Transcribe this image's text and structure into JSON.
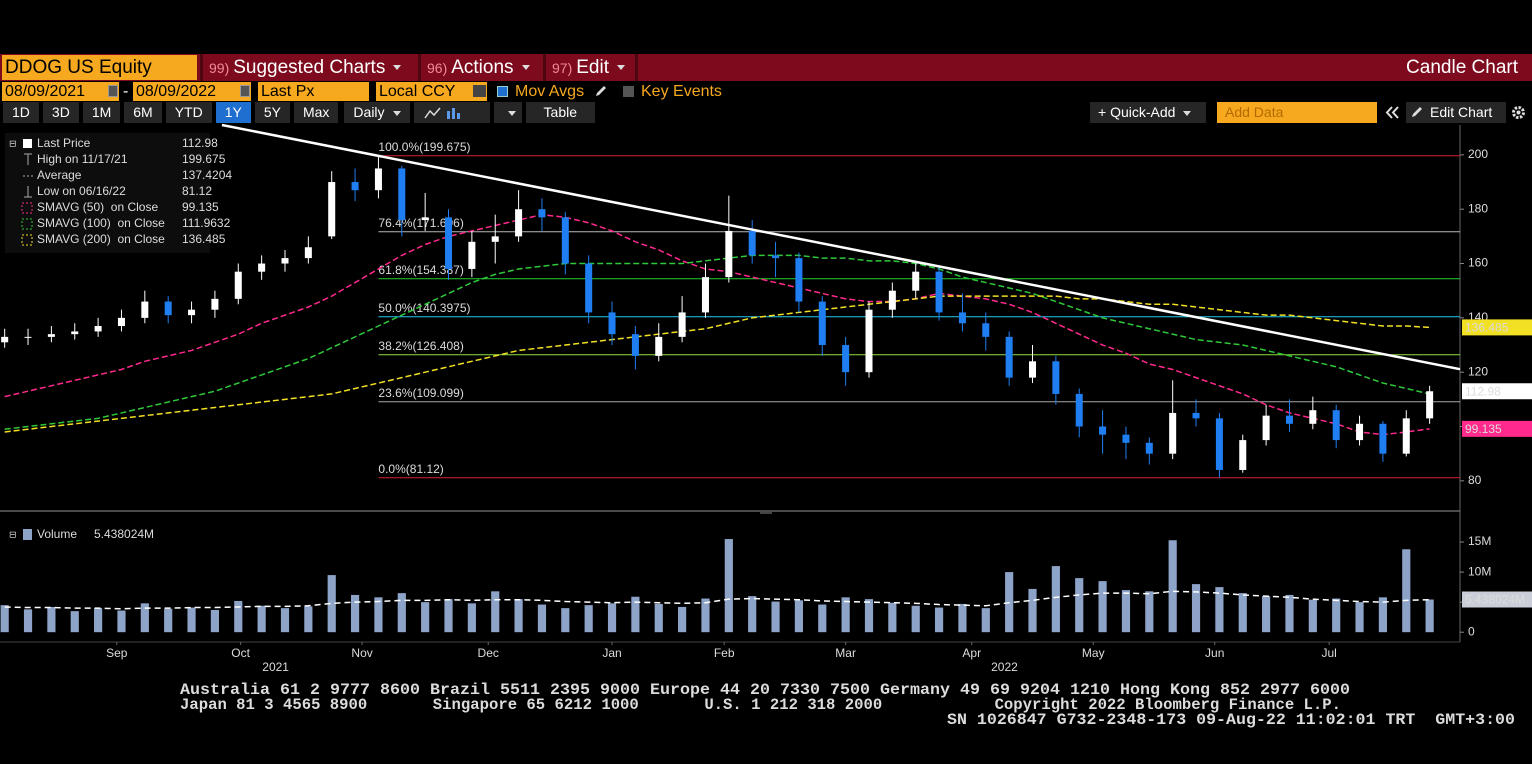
{
  "toolbar": {
    "ticker": "DDOG US Equity",
    "menus": [
      {
        "num": "99)",
        "label": "Suggested Charts"
      },
      {
        "num": "96)",
        "label": "Actions"
      },
      {
        "num": "97)",
        "label": "Edit"
      }
    ],
    "chart_type": "Candle Chart",
    "start_date": "08/09/2021",
    "date_sep": "-",
    "end_date": "08/09/2022",
    "field": "Last Px",
    "currency": "Local CCY",
    "mov_avgs": "Mov Avgs",
    "key_events": "Key Events",
    "periods": [
      "1D",
      "3D",
      "1M",
      "6M",
      "YTD",
      "1Y",
      "5Y",
      "Max"
    ],
    "active_period": "1Y",
    "frequency": "Daily",
    "table": "Table",
    "quick_add": "+ Quick-Add",
    "add_data_placeholder": "Add Data",
    "edit_chart": "Edit Chart"
  },
  "chart_data": {
    "type": "candlestick",
    "xlim": [
      -0.2,
      62.3
    ],
    "ylim": [
      70,
      211
    ],
    "yticks": [
      80,
      100,
      120,
      140,
      160,
      180,
      200
    ],
    "xticks": [
      {
        "value": 4.8,
        "label": "Sep"
      },
      {
        "value": 10.1,
        "label": "Oct"
      },
      {
        "value": 15.3,
        "label": "Nov"
      },
      {
        "value": 20.7,
        "label": "Dec"
      },
      {
        "value": 26.0,
        "label": "Jan"
      },
      {
        "value": 30.8,
        "label": "Feb"
      },
      {
        "value": 36.0,
        "label": "Mar"
      },
      {
        "value": 41.4,
        "label": "Apr"
      },
      {
        "value": 46.6,
        "label": "May"
      },
      {
        "value": 51.8,
        "label": "Jun"
      },
      {
        "value": 56.7,
        "label": "Jul"
      }
    ],
    "year_ticks": [
      {
        "value": 11.6,
        "label": "2021"
      },
      {
        "value": 42.8,
        "label": "2022"
      }
    ],
    "up_color": "#ffffff",
    "down_color": "#1f7ff2",
    "candles": {
      "open": [
        131,
        133,
        133,
        134,
        135,
        137,
        140,
        146,
        141,
        143,
        147,
        157,
        160,
        162,
        170,
        190,
        187,
        195,
        176,
        177,
        158,
        168,
        170,
        180,
        177,
        160,
        142,
        134,
        126,
        133,
        142,
        155,
        172,
        163,
        162,
        146,
        130,
        120,
        143,
        150,
        157,
        142,
        138,
        133,
        118,
        124,
        112,
        100,
        97,
        94,
        90,
        105,
        103,
        84,
        95,
        104,
        101,
        106,
        95,
        101,
        90,
        103
      ],
      "high": [
        136,
        136,
        137,
        138,
        140,
        143,
        150,
        148,
        146,
        150,
        160,
        163,
        165,
        170,
        194,
        195,
        199.675,
        196,
        186,
        180,
        172,
        178,
        187,
        184,
        179,
        163,
        146,
        137,
        138,
        148,
        160,
        185,
        176,
        168,
        164,
        148,
        133,
        146,
        153,
        160,
        159,
        149,
        142,
        135,
        130,
        126,
        114,
        106,
        100,
        96,
        117,
        110,
        105,
        97,
        108,
        110,
        111,
        108,
        104,
        102,
        106,
        115
      ],
      "low": [
        129,
        130,
        131,
        132,
        133,
        135,
        138,
        138,
        138,
        140,
        145,
        154,
        157,
        160,
        169,
        183,
        184,
        170,
        172,
        154,
        155,
        160,
        168,
        172,
        156,
        138,
        130,
        121,
        124,
        131,
        140,
        153,
        160,
        155,
        142,
        126,
        115,
        118,
        140,
        147,
        139,
        135,
        128,
        115,
        116,
        108,
        96,
        90,
        88,
        86,
        88,
        100,
        81.12,
        83,
        93,
        98,
        99,
        92,
        93,
        87,
        89,
        101
      ],
      "close": [
        133,
        133,
        134,
        135,
        137,
        140,
        146,
        141,
        143,
        147,
        157,
        160,
        162,
        166,
        190,
        187,
        195,
        176,
        177,
        158,
        168,
        170,
        180,
        177,
        160,
        142,
        134,
        126,
        133,
        142,
        155,
        172,
        163,
        162,
        146,
        130,
        120,
        143,
        150,
        157,
        142,
        138,
        133,
        118,
        124,
        112,
        100,
        97,
        94,
        90,
        105,
        103,
        84,
        95,
        104,
        101,
        106,
        95,
        101,
        90,
        103,
        112.98
      ]
    },
    "series": [
      {
        "name": "SMAVG (50)  on Close",
        "color": "#ff2a8c",
        "dash": true,
        "values": [
          111,
          113,
          115,
          117,
          119,
          121,
          124,
          126,
          128,
          131,
          134,
          138,
          141,
          144,
          148,
          153,
          158,
          163,
          167,
          170,
          172,
          174,
          176,
          178,
          177,
          175,
          172,
          168,
          165,
          161,
          158,
          157,
          155,
          153,
          151,
          149,
          147,
          146,
          146,
          147,
          149,
          148,
          147,
          145,
          142,
          138,
          134,
          130,
          127,
          123,
          121,
          118,
          115,
          112,
          108,
          105,
          103,
          101,
          98,
          97,
          98,
          99.135
        ]
      },
      {
        "name": "SMAVG (100)  on Close",
        "color": "#2ec93a",
        "dash": true,
        "values": [
          99,
          100,
          101,
          102,
          103,
          105,
          107,
          109,
          111,
          113,
          116,
          119,
          122,
          125,
          129,
          133,
          137,
          141,
          145,
          149,
          153,
          156,
          158,
          159,
          160,
          160,
          160,
          160,
          160,
          160,
          161,
          162,
          163,
          163,
          163,
          162,
          162,
          161,
          161,
          160,
          158,
          155,
          153,
          151,
          149,
          146,
          143,
          140,
          138,
          136,
          134,
          132,
          131,
          130,
          128,
          126,
          124,
          122,
          119,
          116,
          114,
          111.9632
        ]
      },
      {
        "name": "SMAVG (200)  on Close",
        "color": "#f2e024",
        "dash": true,
        "values": [
          98,
          99,
          100,
          101,
          102,
          103,
          104,
          105,
          106,
          107,
          108,
          109,
          110,
          111,
          112,
          114,
          116,
          118,
          120,
          122,
          124,
          126,
          128,
          129,
          130,
          131,
          132,
          133,
          134,
          135,
          136,
          138,
          140,
          141,
          142,
          143,
          144,
          145,
          146,
          147,
          148,
          148,
          148,
          148,
          148,
          148,
          147,
          147,
          146,
          145,
          145,
          144,
          143,
          142,
          141,
          141,
          140,
          139,
          138,
          137,
          137,
          136.485
        ]
      }
    ],
    "legend": {
      "last_price": "Last Price",
      "high": "High on 11/17/21",
      "average": "Average",
      "average_value": 137.4204,
      "low": "Low on 06/16/22"
    },
    "fib_levels": [
      {
        "value": 199.675,
        "label": "100.0%(199.675)",
        "color": "#d8202e"
      },
      {
        "value": 171.696,
        "label": "76.4%(171.696)",
        "color": "#b8b8b8"
      },
      {
        "value": 154.387,
        "label": "61.8%(154.387)",
        "color": "#22d030"
      },
      {
        "value": 140.3975,
        "label": "50.0%(140.3975)",
        "color": "#22c8ee"
      },
      {
        "value": 126.408,
        "label": "38.2%(126.408)",
        "color": "#8ee040"
      },
      {
        "value": 109.099,
        "label": "23.6%(109.099)",
        "color": "#a8a8a8"
      },
      {
        "value": 81.12,
        "label": "0.0%(81.12)",
        "color": "#d8202e"
      }
    ],
    "trendline": {
      "x": [
        9.3,
        62.3
      ],
      "y": [
        211,
        121.1
      ],
      "color": "#ffffff"
    },
    "volume": {
      "label": "Volume",
      "color": "#8ea3c8",
      "avg_color": "#ffffff",
      "ylim": [
        -1.3,
        19
      ],
      "yticks": [
        0,
        {
          "value": 5,
          "label": "5M"
        },
        {
          "value": 10,
          "label": "10M"
        },
        {
          "value": 15,
          "label": "15M"
        }
      ],
      "values": [
        4.5,
        3.8,
        4.2,
        3.5,
        4.0,
        3.6,
        4.8,
        3.9,
        4.1,
        3.7,
        5.2,
        4.4,
        4.0,
        4.3,
        9.5,
        6.2,
        5.8,
        6.5,
        5.0,
        5.5,
        4.8,
        6.8,
        5.5,
        4.6,
        4.0,
        4.5,
        4.8,
        5.9,
        4.7,
        4.2,
        5.6,
        15.5,
        6.0,
        5.1,
        5.3,
        4.6,
        5.8,
        5.5,
        4.9,
        4.4,
        4.1,
        4.7,
        4.0,
        10.0,
        7.2,
        11.0,
        9.0,
        8.5,
        7.0,
        6.8,
        15.3,
        8.0,
        7.5,
        6.5,
        6.0,
        6.2,
        5.4,
        5.6,
        5.0,
        5.8,
        13.8,
        5.438024
      ],
      "avg": [
        4.2,
        4.1,
        4.1,
        4.0,
        4.0,
        3.9,
        4.0,
        4.0,
        4.1,
        4.1,
        4.2,
        4.3,
        4.3,
        4.4,
        4.8,
        5.0,
        5.1,
        5.3,
        5.3,
        5.4,
        5.3,
        5.4,
        5.4,
        5.3,
        5.1,
        5.0,
        4.9,
        5.0,
        4.9,
        4.8,
        4.9,
        5.5,
        5.6,
        5.5,
        5.4,
        5.2,
        5.1,
        5.0,
        4.9,
        4.8,
        4.6,
        4.5,
        4.4,
        4.9,
        5.3,
        5.8,
        6.2,
        6.5,
        6.5,
        6.4,
        6.8,
        6.7,
        6.5,
        6.2,
        6.0,
        5.8,
        5.5,
        5.3,
        5.1,
        5.0,
        5.3,
        5.4
      ],
      "current": {
        "value": 5.438024,
        "label": "5.438024M"
      }
    }
  },
  "footer": {
    "lines": [
      "Australia 61 2 9777 8600 Brazil 5511 2395 9000 Europe 44 20 7330 7500 Germany 49 69 9204 1210 Hong Kong 852 2977 6000",
      "Japan 81 3 4565 8900       Singapore 65 6212 1000       U.S. 1 212 318 2000            Copyright 2022 Bloomberg Finance L.P.",
      "SN 1026847 G732-2348-173 09-Aug-22 11:02:01 TRT  GMT+3:00"
    ]
  }
}
